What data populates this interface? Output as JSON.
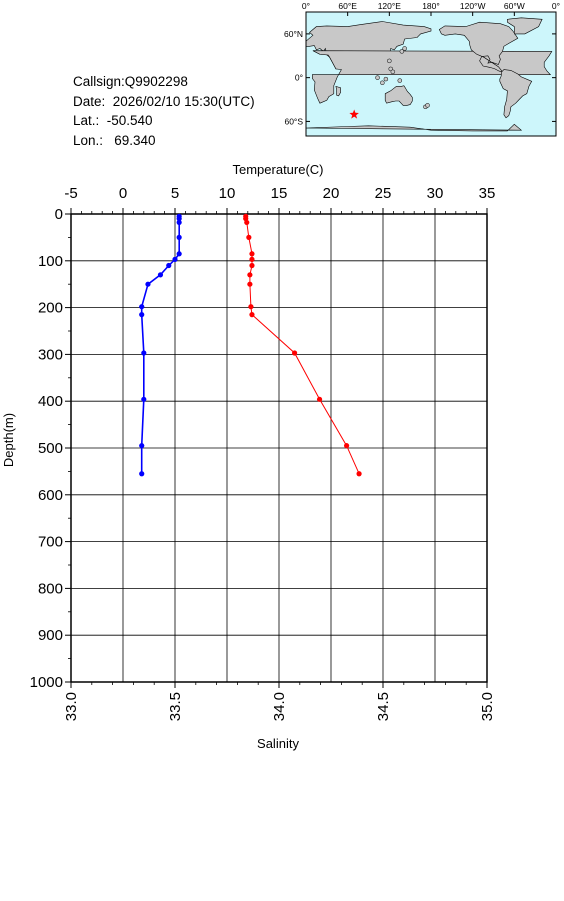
{
  "station": {
    "callsign": "Callsign:Q9902298",
    "date": "Date:  2026/02/10 15:30(UTC)",
    "lat": "Lat.:  -50.540",
    "lon": "Lon.:   69.340"
  },
  "map": {
    "lon_labels": [
      "0°",
      "60°E",
      "120°E",
      "180°",
      "120°W",
      "60°W",
      "0°"
    ],
    "lat_labels": [
      "60°N",
      "0°",
      "60°S"
    ],
    "marker_lon": 69.34,
    "marker_lat": -50.54,
    "ocean_color": "#cdf6fb",
    "land_color": "#c8c8c8",
    "marker_color": "#ff0000"
  },
  "chart_data": {
    "type": "line",
    "top_axis": {
      "label": "Temperature(C)",
      "range": [
        -5,
        35
      ],
      "ticks": [
        "-5",
        "0",
        "5",
        "10",
        "15",
        "20",
        "25",
        "30",
        "35"
      ]
    },
    "bottom_axis": {
      "label": "Salinity",
      "range": [
        33.0,
        35.0
      ],
      "ticks": [
        "33.0",
        "33.5",
        "34.0",
        "34.5",
        "35.0"
      ]
    },
    "y_axis": {
      "label": "Depth(m)",
      "range": [
        0,
        1000
      ],
      "inverted": true,
      "ticks": [
        "0",
        "100",
        "200",
        "300",
        "400",
        "500",
        "600",
        "700",
        "800",
        "900",
        "1000"
      ]
    },
    "grid": true,
    "series": [
      {
        "axis": "top",
        "color": "#ff0000",
        "points": [
          [
            11.8,
            5
          ],
          [
            11.8,
            10
          ],
          [
            11.9,
            18
          ],
          [
            12.1,
            50
          ],
          [
            12.4,
            85
          ],
          [
            12.4,
            97
          ],
          [
            12.4,
            110
          ],
          [
            12.2,
            130
          ],
          [
            12.2,
            150
          ],
          [
            12.3,
            198
          ],
          [
            12.4,
            215
          ],
          [
            16.5,
            297
          ],
          [
            18.9,
            396
          ],
          [
            21.5,
            495
          ],
          [
            22.7,
            555
          ]
        ]
      },
      {
        "axis": "bottom",
        "color": "#0000ff",
        "points": [
          [
            33.52,
            5
          ],
          [
            33.52,
            10
          ],
          [
            33.52,
            18
          ],
          [
            33.52,
            50
          ],
          [
            33.52,
            85
          ],
          [
            33.5,
            97
          ],
          [
            33.47,
            110
          ],
          [
            33.43,
            130
          ],
          [
            33.37,
            150
          ],
          [
            33.34,
            198
          ],
          [
            33.34,
            215
          ],
          [
            33.35,
            297
          ],
          [
            33.35,
            396
          ],
          [
            33.34,
            495
          ],
          [
            33.34,
            555
          ]
        ]
      }
    ]
  }
}
